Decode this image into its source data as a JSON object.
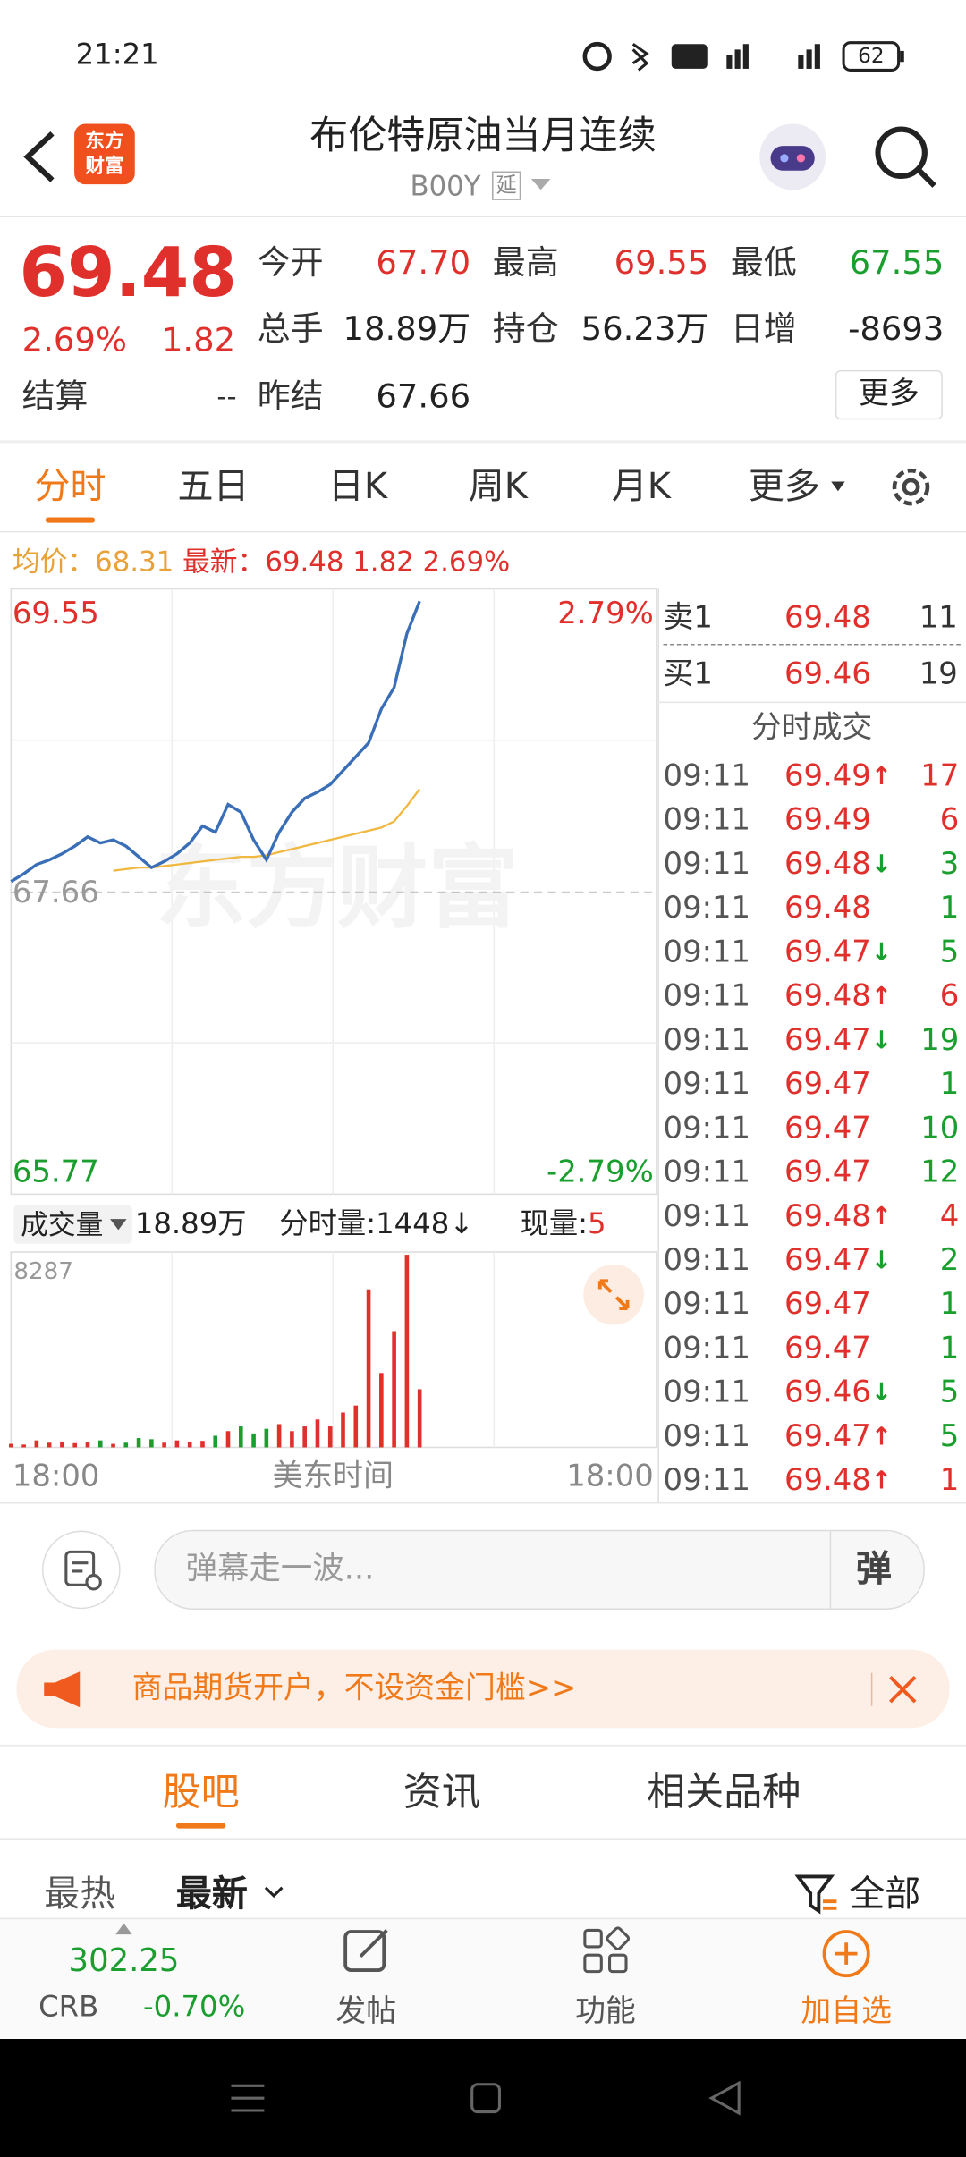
{
  "status_bar": {
    "time": "21:21",
    "battery": "62"
  },
  "header": {
    "logo": [
      "东方",
      "财富"
    ],
    "title": "布伦特原油当月连续",
    "code": "B00Y",
    "delay_tag": "延"
  },
  "quote": {
    "price": "69.48",
    "change_pct": "2.69%",
    "change": "1.82",
    "settle_label": "结算",
    "settle": "--",
    "fields": [
      {
        "label": "今开",
        "value": "67.70",
        "color": "#e0302c"
      },
      {
        "label": "最高",
        "value": "69.55",
        "color": "#e0302c"
      },
      {
        "label": "最低",
        "value": "67.55",
        "color": "#1a9e2e"
      },
      {
        "label": "总手",
        "value": "18.89万",
        "color": "#222222"
      },
      {
        "label": "持仓",
        "value": "56.23万",
        "color": "#222222"
      },
      {
        "label": "日增",
        "value": "-8693",
        "color": "#222222"
      },
      {
        "label": "昨结",
        "value": "67.66",
        "color": "#222222"
      }
    ],
    "more": "更多"
  },
  "tabs": [
    "分时",
    "五日",
    "日K",
    "周K",
    "月K",
    "更多"
  ],
  "info": {
    "avg_label": "均价：",
    "avg": "68.31",
    "last_label": "最新：",
    "last": "69.48",
    "change": "1.82",
    "change_pct": "2.69%"
  },
  "chart": {
    "ylim": [
      65.77,
      69.55
    ],
    "pct_top": "2.79%",
    "pct_bottom": "-2.79%",
    "ref": 67.66,
    "price_color": "#3a6fb8",
    "avg_color": "#f0b840",
    "price": [
      67.73,
      67.78,
      67.84,
      67.87,
      67.91,
      67.96,
      68.02,
      67.98,
      68.0,
      67.96,
      67.89,
      67.82,
      67.86,
      67.91,
      67.98,
      68.09,
      68.05,
      68.23,
      68.18,
      68.0,
      67.87,
      68.05,
      68.18,
      68.27,
      68.31,
      68.36,
      68.45,
      68.54,
      68.63,
      68.85,
      68.99,
      69.34,
      69.55
    ],
    "avg": [
      null,
      null,
      null,
      null,
      null,
      null,
      null,
      null,
      67.8,
      67.81,
      67.82,
      67.82,
      67.83,
      67.84,
      67.85,
      67.86,
      67.87,
      67.88,
      67.89,
      67.89,
      67.9,
      67.92,
      67.94,
      67.96,
      67.98,
      68.0,
      68.02,
      68.04,
      68.06,
      68.08,
      68.12,
      68.22,
      68.33
    ],
    "volume_label": "成交量",
    "volume_total": "18.89万",
    "tick_volume_label": "分时量:",
    "tick_volume": "1448",
    "tick_volume_arrow": "↓",
    "current_volume_label": "现量:",
    "current_volume": "5",
    "vol_ylim": [
      0,
      8287
    ],
    "volume": [
      150,
      120,
      300,
      200,
      250,
      180,
      220,
      300,
      150,
      200,
      400,
      350,
      200,
      300,
      250,
      280,
      500,
      700,
      900,
      600,
      800,
      1000,
      700,
      900,
      1200,
      900,
      1500,
      1800,
      6800,
      3200,
      5000,
      8287,
      2500
    ],
    "x_start": "18:00",
    "x_mid": "美东时间",
    "x_end": "18:00",
    "watermark": "东方财富"
  },
  "order_book": [
    {
      "side": "卖1",
      "price": "69.48",
      "volume": "11"
    },
    {
      "side": "买1",
      "price": "69.46",
      "volume": "19"
    }
  ],
  "trades_title": "分时成交",
  "trades": [
    {
      "time": "09:11",
      "price": "69.49",
      "arrow": "↑",
      "arrow_color": "#e0302c",
      "volume": "17",
      "volume_color": "#e0302c"
    },
    {
      "time": "09:11",
      "price": "69.49",
      "volume": "6",
      "volume_color": "#e0302c"
    },
    {
      "time": "09:11",
      "price": "69.48",
      "arrow": "↓",
      "arrow_color": "#1a9e2e",
      "volume": "3",
      "volume_color": "#1a9e2e"
    },
    {
      "time": "09:11",
      "price": "69.48",
      "volume": "1",
      "volume_color": "#1a9e2e"
    },
    {
      "time": "09:11",
      "price": "69.47",
      "arrow": "↓",
      "arrow_color": "#1a9e2e",
      "volume": "5",
      "volume_color": "#1a9e2e"
    },
    {
      "time": "09:11",
      "price": "69.48",
      "arrow": "↑",
      "arrow_color": "#e0302c",
      "volume": "6",
      "volume_color": "#e0302c"
    },
    {
      "time": "09:11",
      "price": "69.47",
      "arrow": "↓",
      "arrow_color": "#1a9e2e",
      "volume": "19",
      "volume_color": "#1a9e2e"
    },
    {
      "time": "09:11",
      "price": "69.47",
      "volume": "1",
      "volume_color": "#1a9e2e"
    },
    {
      "time": "09:11",
      "price": "69.47",
      "volume": "10",
      "volume_color": "#1a9e2e"
    },
    {
      "time": "09:11",
      "price": "69.47",
      "volume": "12",
      "volume_color": "#1a9e2e"
    },
    {
      "time": "09:11",
      "price": "69.48",
      "arrow": "↑",
      "arrow_color": "#e0302c",
      "volume": "4",
      "volume_color": "#e0302c"
    },
    {
      "time": "09:11",
      "price": "69.47",
      "arrow": "↓",
      "arrow_color": "#1a9e2e",
      "volume": "2",
      "volume_color": "#1a9e2e"
    },
    {
      "time": "09:11",
      "price": "69.47",
      "volume": "1",
      "volume_color": "#1a9e2e"
    },
    {
      "time": "09:11",
      "price": "69.47",
      "volume": "1",
      "volume_color": "#1a9e2e"
    },
    {
      "time": "09:11",
      "price": "69.46",
      "arrow": "↓",
      "arrow_color": "#1a9e2e",
      "volume": "5",
      "volume_color": "#1a9e2e"
    },
    {
      "time": "09:11",
      "price": "69.47",
      "arrow": "↑",
      "arrow_color": "#e0302c",
      "volume": "5",
      "volume_color": "#1a9e2e"
    },
    {
      "time": "09:11",
      "price": "69.48",
      "arrow": "↑",
      "arrow_color": "#e0302c",
      "volume": "1",
      "volume_color": "#e0302c"
    }
  ],
  "comment": {
    "placeholder": "弹幕走一波...",
    "button": "弹"
  },
  "banner": {
    "text": "商品期货开户，不设资金门槛>>"
  },
  "section_tabs": [
    "股吧",
    "资讯",
    "相关品种"
  ],
  "sort": {
    "options": [
      "最热",
      "最新"
    ],
    "filter": "全部"
  },
  "bottom_nav": {
    "index_value": "302.25",
    "index_name": "CRB",
    "index_change": "-0.70%",
    "items": [
      "发帖",
      "功能",
      "加自选"
    ]
  }
}
